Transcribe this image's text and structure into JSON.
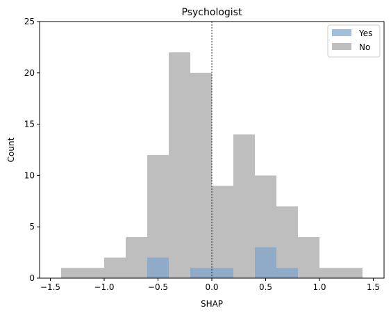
{
  "chart_data": {
    "type": "histogram",
    "title": "Psychologist",
    "xlabel": "SHAP",
    "ylabel": "Count",
    "xlim": [
      -1.6,
      1.6
    ],
    "ylim": [
      0,
      25
    ],
    "xticks": [
      -1.5,
      -1.0,
      -0.5,
      0.0,
      0.5,
      1.0,
      1.5
    ],
    "xtick_labels": [
      "−1.5",
      "−1.0",
      "−0.5",
      "0.0",
      "0.5",
      "1.0",
      "1.5"
    ],
    "yticks": [
      0,
      5,
      10,
      15,
      20,
      25
    ],
    "ytick_labels": [
      "0",
      "5",
      "10",
      "15",
      "20",
      "25"
    ],
    "vline_x": 0.0,
    "grid": false,
    "legend_position": "top-right",
    "series": [
      {
        "name": "Yes",
        "color": "#7ba3cc",
        "bins": [
          {
            "x0": -0.6,
            "x1": -0.4,
            "count": 2
          },
          {
            "x0": -0.2,
            "x1": 0.0,
            "count": 1
          },
          {
            "x0": 0.0,
            "x1": 0.2,
            "count": 1
          },
          {
            "x0": 0.4,
            "x1": 0.6,
            "count": 3
          },
          {
            "x0": 0.6,
            "x1": 0.8,
            "count": 1
          }
        ]
      },
      {
        "name": "No",
        "color": "#bebebe",
        "bins": [
          {
            "x0": -1.4,
            "x1": -1.2,
            "count": 1
          },
          {
            "x0": -1.2,
            "x1": -1.0,
            "count": 1
          },
          {
            "x0": -1.0,
            "x1": -0.8,
            "count": 2
          },
          {
            "x0": -0.8,
            "x1": -0.6,
            "count": 4
          },
          {
            "x0": -0.6,
            "x1": -0.4,
            "count": 12
          },
          {
            "x0": -0.4,
            "x1": -0.2,
            "count": 22
          },
          {
            "x0": -0.2,
            "x1": 0.0,
            "count": 20
          },
          {
            "x0": 0.0,
            "x1": 0.2,
            "count": 9
          },
          {
            "x0": 0.2,
            "x1": 0.4,
            "count": 14
          },
          {
            "x0": 0.4,
            "x1": 0.6,
            "count": 10
          },
          {
            "x0": 0.6,
            "x1": 0.8,
            "count": 7
          },
          {
            "x0": 0.8,
            "x1": 1.0,
            "count": 4
          },
          {
            "x0": 1.0,
            "x1": 1.2,
            "count": 1
          },
          {
            "x0": 1.2,
            "x1": 1.4,
            "count": 1
          }
        ]
      }
    ]
  }
}
